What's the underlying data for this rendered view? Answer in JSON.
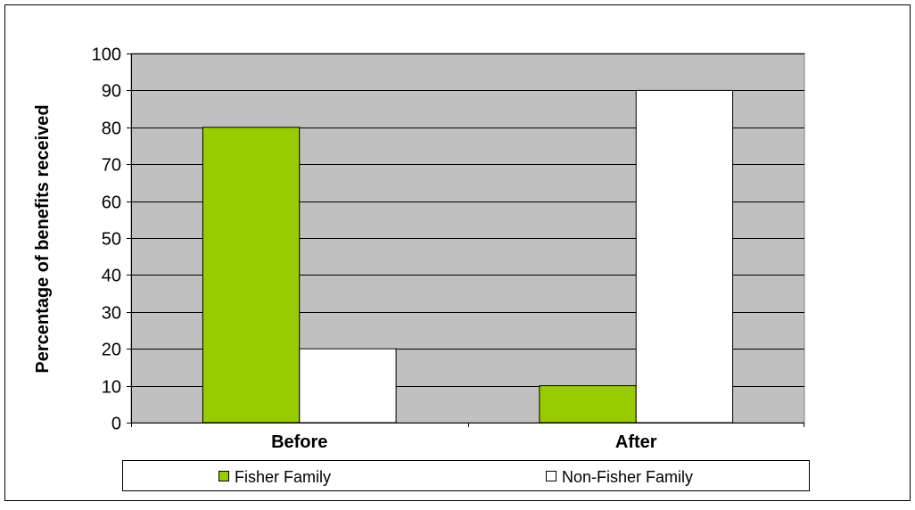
{
  "chart_data": {
    "type": "bar",
    "categories": [
      "Before",
      "After"
    ],
    "series": [
      {
        "name": "Fisher Family",
        "values": [
          80,
          10
        ],
        "color": "#99cc00"
      },
      {
        "name": "Non-Fisher Family",
        "values": [
          20,
          90
        ],
        "color": "#ffffff"
      }
    ],
    "title": "",
    "xlabel": "",
    "ylabel": "Percentage of benefits received",
    "ylim": [
      0,
      100
    ],
    "yticks": [
      "0",
      "10",
      "20",
      "30",
      "40",
      "50",
      "60",
      "70",
      "80",
      "90",
      "100"
    ],
    "grid": true,
    "legend": "bottom",
    "plot_background": "#c0c0c0"
  }
}
